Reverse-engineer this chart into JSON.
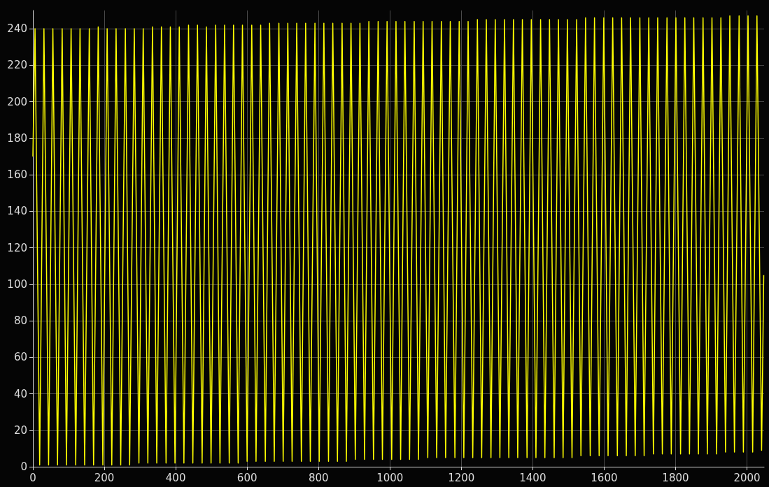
{
  "chart_data": {
    "type": "line",
    "xlim": [
      0,
      2048
    ],
    "ylim": [
      0,
      250
    ],
    "xticks": [
      0,
      200,
      400,
      600,
      800,
      1000,
      1200,
      1400,
      1600,
      1800,
      2000
    ],
    "yticks": [
      0,
      20,
      40,
      60,
      80,
      100,
      120,
      140,
      160,
      180,
      200,
      220,
      240
    ],
    "grid": true,
    "marker": "none",
    "line_style": "solid",
    "series": [
      {
        "color": "#ffff00",
        "x": [
          0,
          6,
          19,
          31,
          44,
          56,
          69,
          82,
          94,
          107,
          120,
          132,
          145,
          158,
          170,
          183,
          196,
          208,
          221,
          233,
          246,
          259,
          271,
          284,
          297,
          309,
          322,
          335,
          347,
          360,
          373,
          385,
          398,
          410,
          423,
          436,
          448,
          461,
          474,
          486,
          499,
          512,
          524,
          537,
          550,
          562,
          575,
          587,
          600,
          613,
          625,
          638,
          651,
          663,
          676,
          689,
          701,
          714,
          726,
          739,
          752,
          764,
          777,
          790,
          802,
          815,
          828,
          840,
          853,
          866,
          878,
          891,
          903,
          916,
          929,
          941,
          954,
          967,
          979,
          992,
          1005,
          1017,
          1030,
          1042,
          1055,
          1068,
          1080,
          1093,
          1106,
          1118,
          1131,
          1144,
          1156,
          1169,
          1182,
          1194,
          1207,
          1219,
          1232,
          1245,
          1257,
          1270,
          1283,
          1295,
          1308,
          1321,
          1333,
          1346,
          1358,
          1371,
          1384,
          1396,
          1409,
          1422,
          1434,
          1447,
          1460,
          1472,
          1485,
          1497,
          1510,
          1523,
          1535,
          1548,
          1561,
          1573,
          1586,
          1599,
          1611,
          1624,
          1637,
          1649,
          1662,
          1674,
          1687,
          1700,
          1712,
          1725,
          1738,
          1750,
          1763,
          1776,
          1788,
          1801,
          1814,
          1826,
          1839,
          1851,
          1864,
          1877,
          1889,
          1902,
          1915,
          1927,
          1940,
          1952,
          1965,
          1978,
          1990,
          2003,
          2016,
          2028,
          2041,
          2047
        ],
        "values": [
          170,
          240,
          1,
          240,
          1,
          240,
          1,
          240,
          1,
          240,
          1,
          240,
          1,
          240,
          1,
          241,
          1,
          240,
          1,
          240,
          1,
          240,
          1,
          240,
          2,
          240,
          2,
          241,
          2,
          241,
          2,
          241,
          2,
          241,
          2,
          242,
          2,
          242,
          2,
          241,
          2,
          242,
          2,
          242,
          2,
          242,
          2,
          242,
          3,
          242,
          3,
          242,
          3,
          243,
          3,
          243,
          3,
          243,
          3,
          243,
          3,
          243,
          3,
          243,
          3,
          243,
          3,
          243,
          3,
          243,
          3,
          243,
          4,
          243,
          4,
          244,
          4,
          244,
          4,
          244,
          4,
          244,
          4,
          244,
          4,
          244,
          4,
          244,
          5,
          244,
          5,
          244,
          5,
          244,
          5,
          244,
          5,
          244,
          5,
          245,
          5,
          245,
          5,
          245,
          5,
          245,
          5,
          245,
          5,
          245,
          5,
          245,
          5,
          245,
          5,
          245,
          5,
          245,
          5,
          245,
          5,
          245,
          6,
          246,
          6,
          246,
          6,
          246,
          6,
          246,
          6,
          246,
          6,
          246,
          6,
          246,
          6,
          246,
          7,
          246,
          7,
          246,
          7,
          246,
          7,
          246,
          7,
          246,
          7,
          246,
          7,
          246,
          7,
          246,
          8,
          247,
          8,
          247,
          8,
          247,
          8,
          247,
          9,
          105
        ]
      }
    ]
  }
}
